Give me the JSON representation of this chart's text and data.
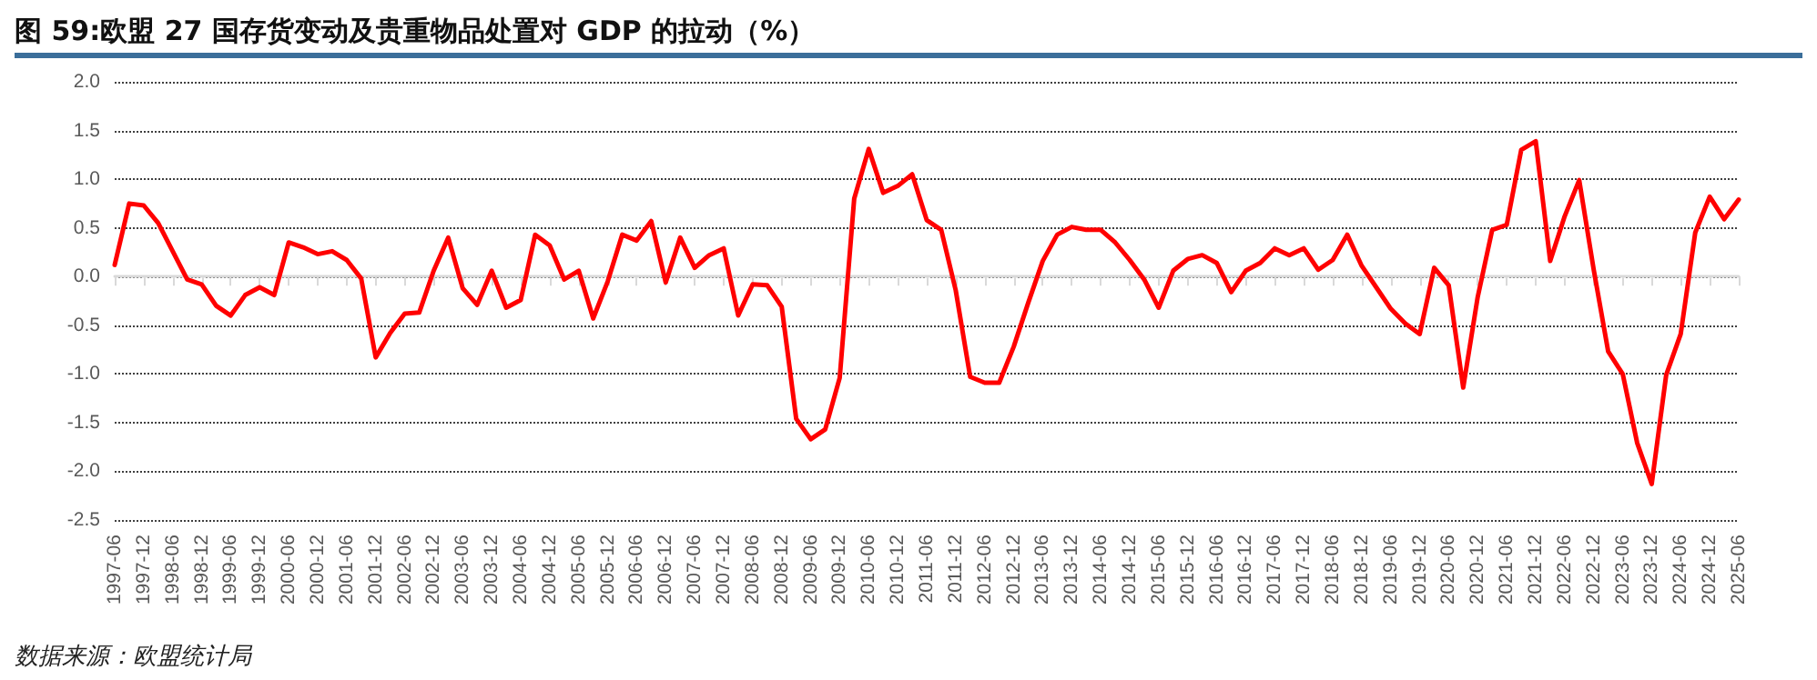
{
  "chart_data": {
    "type": "line",
    "title": "图 59:欧盟 27 国存货变动及贵重物品处置对 GDP 的拉动（%）",
    "annotations": [
      "数据来源：欧盟统计局"
    ],
    "categories": [
      "1997-06",
      null,
      "1997-12",
      null,
      "1998-06",
      null,
      "1998-12",
      null,
      "1999-06",
      null,
      "1999-12",
      null,
      "2000-06",
      null,
      "2000-12",
      null,
      "2001-06",
      null,
      "2001-12",
      null,
      "2002-06",
      null,
      "2002-12",
      null,
      "2003-06",
      null,
      "2003-12",
      null,
      "2004-06",
      null,
      "2004-12",
      null,
      "2005-06",
      null,
      "2005-12",
      null,
      "2006-06",
      null,
      "2006-12",
      null,
      "2007-06",
      null,
      "2007-12",
      null,
      "2008-06",
      null,
      "2008-12",
      null,
      "2009-06",
      null,
      "2009-12",
      null,
      "2010-06",
      null,
      "2010-12",
      null,
      "2011-06",
      null,
      "2011-12",
      null,
      "2012-06",
      null,
      "2012-12",
      null,
      "2013-06",
      null,
      "2013-12",
      null,
      "2014-06",
      null,
      "2014-12",
      null,
      "2015-06",
      null,
      "2015-12",
      null,
      "2016-06",
      null,
      "2016-12",
      null,
      "2017-06",
      null,
      "2017-12",
      null,
      "2018-06",
      null,
      "2018-12",
      null,
      "2019-06",
      null,
      "2019-12",
      null,
      "2020-06",
      null,
      "2020-12",
      null,
      "2021-06",
      null,
      "2021-12",
      null,
      "2022-06",
      null,
      "2022-12",
      null,
      "2023-06",
      null,
      "2023-12",
      null,
      "2024-06",
      null,
      "2024-12",
      null,
      "2025-06"
    ],
    "series": [
      {
        "color": "#ff0000",
        "values": [
          0.12,
          0.75,
          0.73,
          0.55,
          0.26,
          -0.03,
          -0.08,
          -0.3,
          -0.4,
          -0.19,
          -0.11,
          -0.19,
          0.35,
          0.3,
          0.23,
          0.26,
          0.17,
          -0.02,
          -0.83,
          -0.58,
          -0.38,
          -0.37,
          0.06,
          0.4,
          -0.12,
          -0.29,
          0.06,
          -0.32,
          -0.24,
          0.43,
          0.32,
          -0.03,
          0.06,
          -0.43,
          -0.05,
          0.43,
          0.37,
          0.57,
          -0.06,
          0.4,
          0.09,
          0.22,
          0.29,
          -0.4,
          -0.08,
          -0.09,
          -0.31,
          -1.46,
          -1.67,
          -1.57,
          -1.04,
          0.8,
          1.31,
          0.86,
          0.93,
          1.05,
          0.58,
          0.48,
          -0.14,
          -1.03,
          -1.09,
          -1.09,
          -0.72,
          -0.27,
          0.16,
          0.43,
          0.51,
          0.48,
          0.48,
          0.35,
          0.17,
          -0.03,
          -0.32,
          0.06,
          0.18,
          0.22,
          0.14,
          -0.16,
          0.06,
          0.14,
          0.29,
          0.22,
          0.29,
          0.07,
          0.17,
          0.43,
          0.11,
          -0.11,
          -0.33,
          -0.48,
          -0.59,
          0.09,
          -0.09,
          -1.14,
          -0.21,
          0.48,
          0.53,
          1.3,
          1.39,
          0.16,
          0.62,
          0.99,
          0.07,
          -0.77,
          -1.0,
          -1.71,
          -2.13,
          -1.01,
          -0.59,
          0.45,
          0.82,
          0.59,
          0.79
        ]
      }
    ],
    "ylim": [
      -2.5,
      2.0
    ],
    "yticks": [
      -2.5,
      {
        "value": -2,
        "label": "-2.0"
      },
      -1.5,
      {
        "value": -1,
        "label": "-1.0"
      },
      -0.5,
      {
        "value": 0,
        "label": "0.0"
      },
      0.5,
      {
        "value": 1,
        "label": "1.0"
      },
      1.5,
      {
        "value": 2,
        "label": "2.0"
      }
    ],
    "grid": "y",
    "marker": "none",
    "line_style": "solid"
  }
}
